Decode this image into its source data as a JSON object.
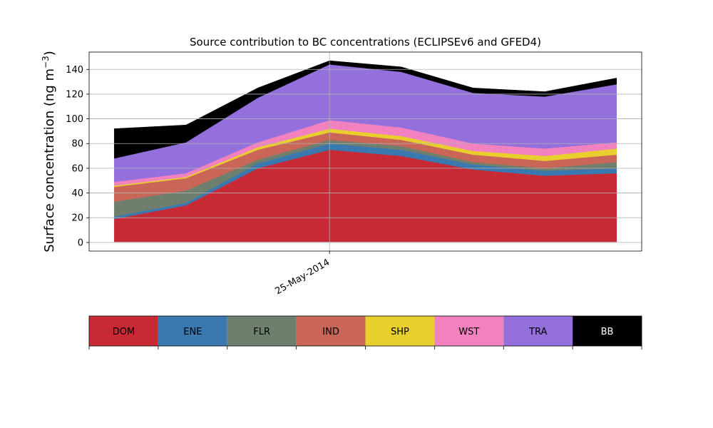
{
  "chart_data": {
    "type": "area",
    "stacked": true,
    "title": "Source contribution to BC concentrations (ECLIPSEv6 and GFED4)",
    "ylabel_main": "Surface concentration (ng m",
    "ylabel_sup": "−3",
    "ylabel_close": ")",
    "xlabel": "",
    "ylim": [
      -7,
      154
    ],
    "yticks": [
      0,
      20,
      40,
      60,
      80,
      100,
      120,
      140
    ],
    "x_points": 8,
    "xlim": [
      -0.35,
      7.35
    ],
    "xtick": {
      "index": 3,
      "label": "25-May-2014"
    },
    "grid": true,
    "series": [
      {
        "name": "DOM",
        "color": "#c72935",
        "values": [
          19,
          30,
          60,
          75,
          70,
          59,
          54,
          56
        ]
      },
      {
        "name": "ENE",
        "color": "#3a78b0",
        "values": [
          2,
          2,
          4,
          5,
          5,
          4,
          4,
          4
        ]
      },
      {
        "name": "FLR",
        "color": "#6e7f6e",
        "values": [
          12,
          10,
          3,
          3,
          3,
          2,
          2,
          5
        ]
      },
      {
        "name": "IND",
        "color": "#c96657",
        "values": [
          12,
          10,
          8,
          6,
          5,
          6,
          6,
          6
        ]
      },
      {
        "name": "SHP",
        "color": "#e8cf2e",
        "values": [
          1,
          1,
          2,
          3,
          3,
          3,
          4,
          5
        ]
      },
      {
        "name": "WST",
        "color": "#f282bf",
        "values": [
          3,
          3,
          4,
          7,
          7,
          6,
          6,
          5
        ]
      },
      {
        "name": "TRA",
        "color": "#9470dc",
        "values": [
          19,
          25,
          36,
          45,
          45,
          41,
          42,
          47
        ]
      },
      {
        "name": "BB",
        "color": "#000000",
        "values": [
          24,
          14,
          8,
          3,
          4,
          4,
          4,
          5
        ]
      }
    ]
  }
}
